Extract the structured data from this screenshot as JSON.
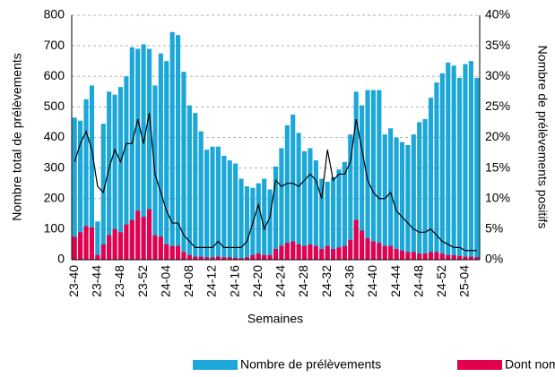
{
  "chart_data": {
    "type": "bar-line",
    "xlabel": "Semaines",
    "ylabel": "Nombre total de prélèvements",
    "y2label": "Nombre de prélèvements positifs",
    "categories": [
      "23-40",
      null,
      null,
      null,
      "23-44",
      null,
      null,
      null,
      "23-48",
      null,
      null,
      null,
      "23-52",
      null,
      null,
      null,
      "24-04",
      null,
      null,
      null,
      "24-08",
      null,
      null,
      null,
      "24-12",
      null,
      null,
      null,
      "24-16",
      null,
      null,
      null,
      "24-20",
      null,
      null,
      null,
      "24-24",
      null,
      null,
      null,
      "24-28",
      null,
      null,
      null,
      "24-32",
      null,
      null,
      null,
      "24-36",
      null,
      null,
      null,
      "24-40",
      null,
      null,
      null,
      "24-44",
      null,
      null,
      null,
      "24-48",
      null,
      null,
      null,
      "24-52",
      null,
      null,
      null,
      "25-04",
      null,
      null
    ],
    "series": [
      {
        "name": "Nombre de prélèvements",
        "kind": "bar",
        "color": "#1ba7d8",
        "values": [
          465,
          455,
          525,
          570,
          125,
          445,
          550,
          540,
          565,
          600,
          695,
          690,
          705,
          690,
          570,
          675,
          650,
          745,
          735,
          615,
          505,
          480,
          420,
          360,
          370,
          370,
          340,
          325,
          315,
          265,
          240,
          235,
          250,
          265,
          230,
          305,
          365,
          440,
          475,
          415,
          355,
          365,
          325,
          265,
          255,
          270,
          295,
          320,
          410,
          550,
          505,
          555,
          555,
          555,
          410,
          430,
          400,
          385,
          375,
          410,
          450,
          460,
          530,
          580,
          610,
          645,
          635,
          595,
          640,
          650,
          595
        ]
      },
      {
        "name": "Dont nom",
        "kind": "bar",
        "color": "#e3004f",
        "values": [
          75,
          90,
          110,
          105,
          15,
          50,
          80,
          100,
          90,
          115,
          130,
          160,
          140,
          165,
          80,
          75,
          50,
          45,
          45,
          25,
          15,
          10,
          10,
          8,
          8,
          10,
          8,
          8,
          6,
          5,
          8,
          15,
          20,
          15,
          15,
          35,
          45,
          55,
          60,
          50,
          45,
          50,
          45,
          35,
          45,
          35,
          40,
          45,
          65,
          130,
          95,
          70,
          60,
          55,
          45,
          45,
          35,
          30,
          25,
          25,
          20,
          20,
          25,
          25,
          20,
          15,
          15,
          12,
          10,
          10,
          8
        ]
      },
      {
        "kind": "line",
        "axis": "y2",
        "color": "#000000",
        "values": [
          16,
          19,
          21,
          18,
          12,
          11,
          15,
          18,
          16,
          19,
          19,
          23,
          19,
          24,
          14,
          11,
          8,
          6,
          6,
          4,
          3,
          2,
          2,
          2,
          2,
          3,
          2,
          2,
          2,
          2,
          3,
          6,
          9,
          5,
          7,
          13,
          12,
          12.5,
          12.5,
          12,
          13,
          14,
          13,
          10,
          18,
          13,
          14,
          14,
          16,
          23,
          18,
          13,
          11,
          10,
          10,
          11,
          8,
          7,
          6,
          5,
          4.5,
          4.5,
          5,
          4,
          3,
          2.5,
          2,
          2,
          1.5,
          1.5,
          1.5
        ]
      }
    ],
    "ylim": [
      0,
      800
    ],
    "yticks": [
      0,
      100,
      200,
      300,
      400,
      500,
      600,
      700,
      800
    ],
    "y2lim": [
      0,
      40
    ],
    "y2ticks": [
      {
        "value": 0,
        "label": "0%"
      },
      {
        "value": 5,
        "label": "5%"
      },
      {
        "value": 10,
        "label": "10%"
      },
      {
        "value": 15,
        "label": "15%"
      },
      {
        "value": 20,
        "label": "20%"
      },
      {
        "value": 25,
        "label": "25%"
      },
      {
        "value": 30,
        "label": "30%"
      },
      {
        "value": 35,
        "label": "35%"
      },
      {
        "value": 40,
        "label": "40%"
      }
    ],
    "grid": true
  }
}
